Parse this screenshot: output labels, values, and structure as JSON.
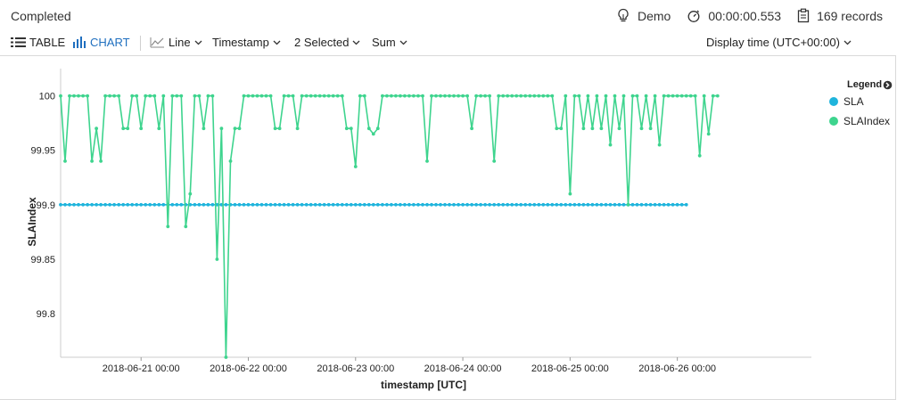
{
  "status": {
    "text": "Completed"
  },
  "meta": {
    "workspace": "Demo",
    "duration": "00:00:00.553",
    "records": "169 records"
  },
  "toolbar": {
    "table_label": "TABLE",
    "chart_label": "CHART",
    "chart_type": "Line",
    "x_column": "Timestamp",
    "selected": "2 Selected",
    "aggregation": "Sum",
    "display_time": "Display time (UTC+00:00)"
  },
  "colors": {
    "sla": "#1fb4dc",
    "slaindex": "#3ed48e",
    "accent": "#1f6fbf"
  },
  "chart_data": {
    "type": "line",
    "xlabel": "timestamp [UTC]",
    "ylabel": "SLAIndex",
    "ylim": [
      99.76,
      100.025
    ],
    "yticks": [
      99.8,
      99.85,
      99.9,
      99.95,
      100
    ],
    "ytick_labels": [
      "99.8",
      "99.85",
      "99.9",
      "99.95",
      "100"
    ],
    "xlim": [
      "2018-06-20 06:00",
      "2018-06-27 06:00"
    ],
    "xticks": [
      "2018-06-21 00:00",
      "2018-06-22 00:00",
      "2018-06-23 00:00",
      "2018-06-24 00:00",
      "2018-06-25 00:00",
      "2018-06-26 00:00"
    ],
    "x_start": "2018-06-20 06:00",
    "x_step_hours": 1,
    "grid": false,
    "legend": {
      "title": "Legend",
      "position": "right"
    },
    "series": [
      {
        "name": "SLA",
        "constant": 99.9,
        "count": 141
      },
      {
        "name": "SLAIndex",
        "values": [
          100,
          99.94,
          100,
          100,
          100,
          100,
          100,
          99.94,
          99.97,
          99.94,
          100,
          100,
          100,
          100,
          99.97,
          99.97,
          100,
          100,
          99.97,
          100,
          100,
          100,
          99.97,
          100,
          99.88,
          100,
          100,
          100,
          99.88,
          99.91,
          100,
          100,
          99.97,
          100,
          100,
          99.85,
          99.97,
          99.76,
          99.94,
          99.97,
          99.97,
          100,
          100,
          100,
          100,
          100,
          100,
          100,
          99.97,
          99.97,
          100,
          100,
          100,
          99.97,
          100,
          100,
          100,
          100,
          100,
          100,
          100,
          100,
          100,
          100,
          99.97,
          99.97,
          99.935,
          100,
          100,
          99.97,
          99.965,
          99.97,
          100,
          100,
          100,
          100,
          100,
          100,
          100,
          100,
          100,
          100,
          99.94,
          100,
          100,
          100,
          100,
          100,
          100,
          100,
          100,
          100,
          99.97,
          100,
          100,
          100,
          100,
          99.94,
          100,
          100,
          100,
          100,
          100,
          100,
          100,
          100,
          100,
          100,
          100,
          100,
          100,
          99.97,
          99.97,
          100,
          99.91,
          100,
          100,
          99.97,
          100,
          99.97,
          100,
          99.97,
          100,
          99.955,
          100,
          99.97,
          100,
          99.9,
          100,
          100,
          99.97,
          100,
          99.97,
          100,
          99.955,
          100,
          100,
          100,
          100,
          100,
          100,
          100,
          100,
          99.945,
          100,
          99.965,
          100,
          100
        ]
      }
    ]
  }
}
